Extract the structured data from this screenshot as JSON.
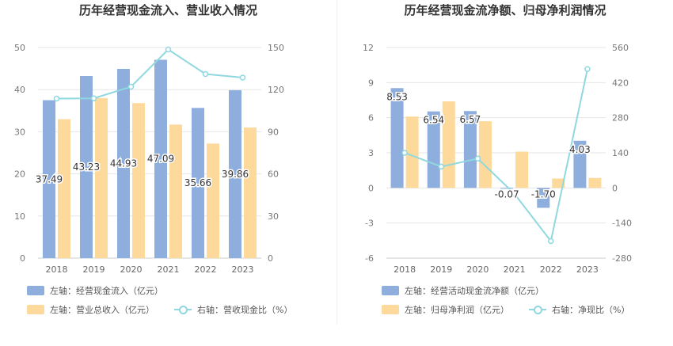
{
  "left": {
    "title": "历年经营现金流入、营业收入情况",
    "legend": {
      "bar1": "左轴：经营现金流入（亿元）",
      "bar2": "左轴：营业总收入（亿元）",
      "line": "右轴：营收现金比（%）"
    }
  },
  "right": {
    "title": "历年经营现金流净额、归母净利润情况",
    "legend": {
      "bar1": "左轴：经营活动现金流净额（亿元）",
      "bar2": "左轴：归母净利润（亿元）",
      "line": "右轴：净现比（%）"
    }
  },
  "colors": {
    "bar1": "#8eaedd",
    "bar2": "#fed99c",
    "line": "#8fd8e0"
  },
  "chart_data": [
    {
      "type": "bar",
      "categories": [
        "2018",
        "2019",
        "2020",
        "2021",
        "2022",
        "2023"
      ],
      "series": [
        {
          "name": "左轴：经营现金流入（亿元）",
          "axis": "left",
          "values": [
            37.49,
            43.23,
            44.93,
            47.09,
            35.66,
            39.86
          ],
          "labels": [
            "37.49",
            "43.23",
            "44.93",
            "47.09",
            "35.66",
            "39.86"
          ]
        },
        {
          "name": "左轴：营业总收入（亿元）",
          "axis": "left",
          "values": [
            33.0,
            38.0,
            36.8,
            31.7,
            27.2,
            31.0
          ]
        },
        {
          "name": "右轴：营收现金比（%）",
          "axis": "right",
          "type": "line",
          "values": [
            113.6,
            113.8,
            122.1,
            148.6,
            131.1,
            128.6
          ]
        }
      ],
      "y_left": {
        "min": 0,
        "max": 50,
        "ticks": [
          0,
          10,
          20,
          30,
          40,
          50
        ]
      },
      "y_right": {
        "min": 0,
        "max": 150,
        "ticks": [
          0,
          30,
          60,
          90,
          120,
          150
        ]
      }
    },
    {
      "type": "bar",
      "categories": [
        "2018",
        "2019",
        "2020",
        "2021",
        "2022",
        "2023"
      ],
      "series": [
        {
          "name": "左轴：经营活动现金流净额（亿元）",
          "axis": "left",
          "values": [
            8.53,
            6.54,
            6.57,
            -0.07,
            -1.7,
            4.03
          ],
          "labels": [
            "8.53",
            "6.54",
            "6.57",
            "-0.07",
            "-1.70",
            "4.03"
          ]
        },
        {
          "name": "左轴：归母净利润（亿元）",
          "axis": "left",
          "values": [
            6.1,
            7.4,
            5.7,
            3.1,
            0.8,
            0.85
          ]
        },
        {
          "name": "右轴：净现比（%）",
          "axis": "right",
          "type": "line",
          "values": [
            140,
            85,
            117,
            -23,
            -212,
            474
          ]
        }
      ],
      "y_left": {
        "min": -6,
        "max": 12,
        "ticks": [
          -6,
          -3,
          0,
          3,
          6,
          9,
          12
        ]
      },
      "y_right": {
        "min": -280,
        "max": 560,
        "ticks": [
          -280,
          -140,
          0,
          140,
          280,
          420,
          560
        ]
      }
    }
  ]
}
